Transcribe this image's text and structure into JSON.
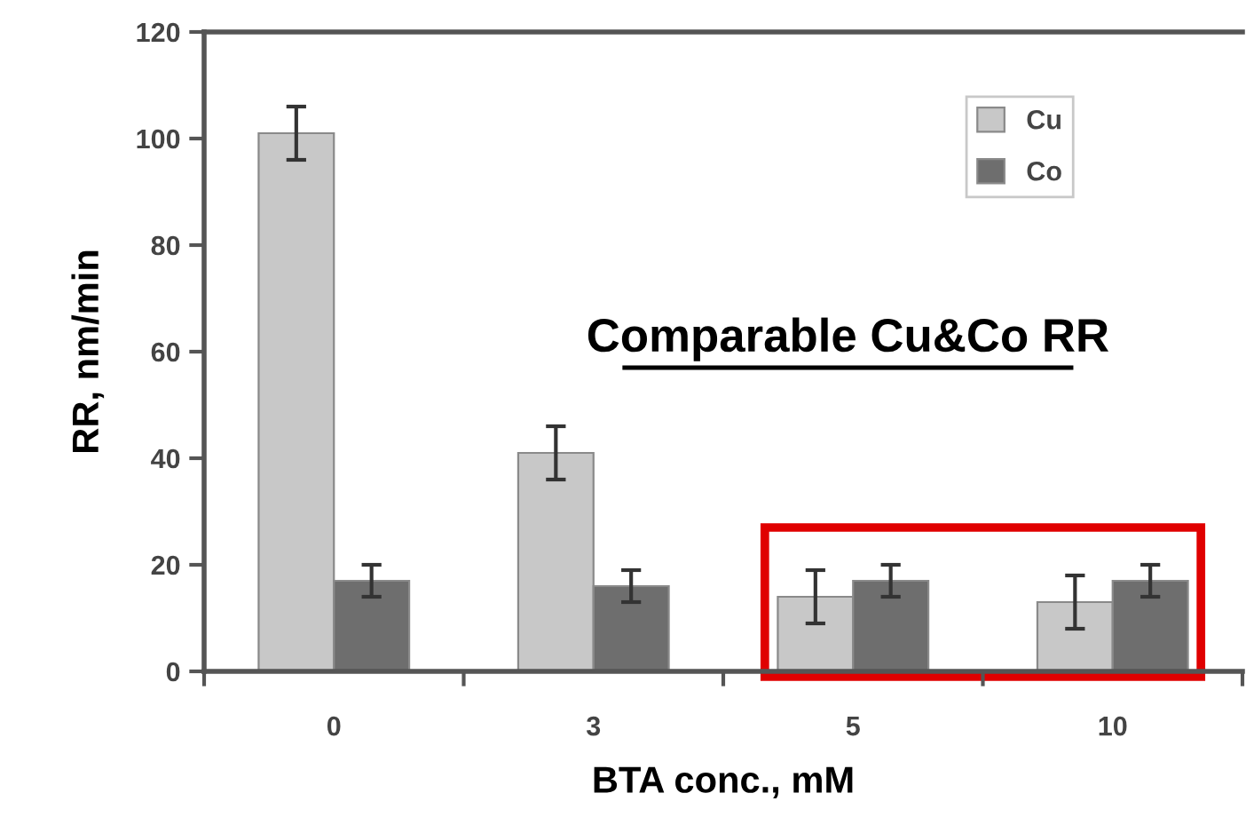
{
  "chart_data": {
    "type": "bar",
    "xlabel": "BTA conc., mM",
    "ylabel": "RR, nm/min",
    "categories": [
      "0",
      "3",
      "5",
      "10"
    ],
    "series": [
      {
        "name": "Cu",
        "color": "#c8c8c8",
        "values": [
          101,
          41,
          14,
          13
        ],
        "errors": [
          5,
          5,
          5,
          5
        ]
      },
      {
        "name": "Co",
        "color": "#6e6e6e",
        "values": [
          17,
          16,
          17,
          17
        ],
        "errors": [
          3,
          3,
          3,
          3
        ]
      }
    ],
    "ylim": [
      0,
      120
    ],
    "yticks": [
      0,
      20,
      40,
      60,
      80,
      100,
      120
    ],
    "grid": false,
    "legend": "top right",
    "annotations": [
      "Comparable Cu&Co RR"
    ]
  }
}
